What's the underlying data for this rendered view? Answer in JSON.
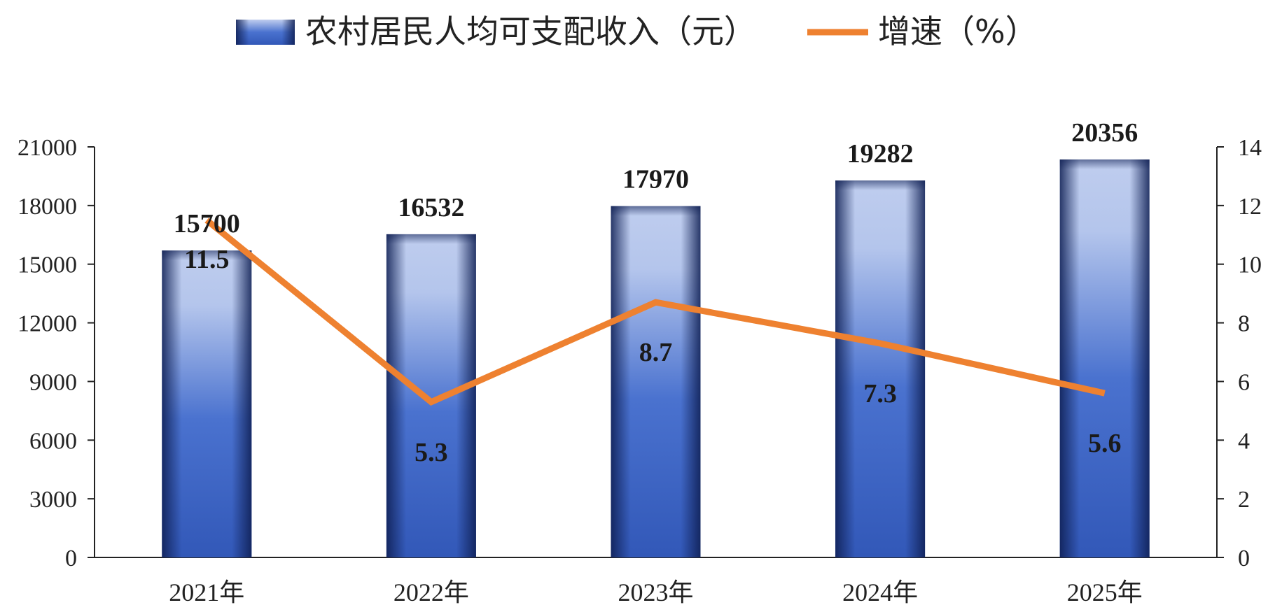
{
  "legend": {
    "bar_label": "农村居民人均可支配收入（元）",
    "line_label": "增速（%）"
  },
  "chart_data": {
    "type": "bar",
    "categories": [
      "2021年",
      "2022年",
      "2023年",
      "2024年",
      "2025年"
    ],
    "series": [
      {
        "name": "农村居民人均可支配收入（元）",
        "type": "bar",
        "axis": "left",
        "values": [
          15700,
          16532,
          17970,
          19282,
          20356
        ]
      },
      {
        "name": "增速（%）",
        "type": "line",
        "axis": "right",
        "values": [
          11.5,
          5.3,
          8.7,
          7.3,
          5.6
        ]
      }
    ],
    "y_left": {
      "min": 0,
      "max": 21000,
      "ticks": [
        "0",
        "3000",
        "6000",
        "9000",
        "12000",
        "15000",
        "18000",
        "21000"
      ]
    },
    "y_right": {
      "min": 0,
      "max": 14,
      "ticks": [
        "0",
        "2",
        "4",
        "6",
        "8",
        "10",
        "12",
        "14"
      ]
    },
    "grid": false,
    "legend_position": "top-center",
    "colors": {
      "bar_dark": "#1f3f93",
      "bar_mid": "#3a63c4",
      "bar_light": "#bccbed",
      "line": "#ee8130",
      "axis": "#222222"
    }
  }
}
